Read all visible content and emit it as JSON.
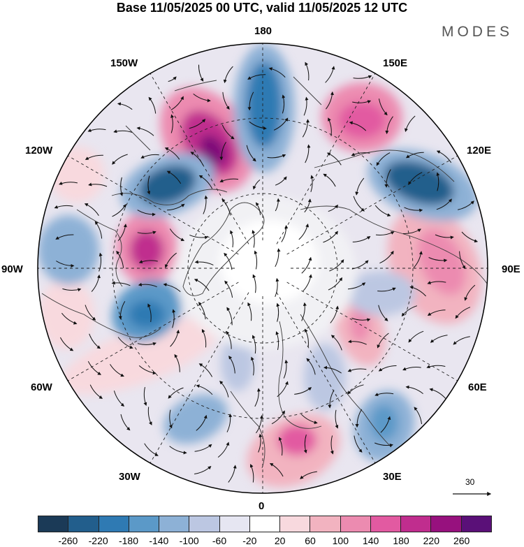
{
  "header": {
    "title": "Base 11/05/2025 00 UTC, valid 11/05/2025 12 UTC",
    "brand": "MODES"
  },
  "map": {
    "projection": "polar-stereographic-north",
    "longitude_labels": {
      "top": "180",
      "bottom": "0",
      "left": "90W",
      "right": "90E",
      "ul1": "150W",
      "ul2": "120W",
      "ur1": "150E",
      "ur2": "120E",
      "ll1": "60W",
      "ll2": "30W",
      "lr1": "60E",
      "lr2": "30E"
    },
    "vector_reference": "30"
  },
  "colorbar": {
    "colors": [
      "#1b3a57",
      "#225e8c",
      "#2f7ab3",
      "#5b99c8",
      "#8db1d6",
      "#bcc7e2",
      "#e6e6f2",
      "#ffffff",
      "#f8d9de",
      "#f2b3c0",
      "#ec8bb0",
      "#e25aa1",
      "#c02d8e",
      "#97117e",
      "#5a1078"
    ],
    "ticks": [
      "-260",
      "-220",
      "-180",
      "-140",
      "-100",
      "-60",
      "-20",
      "20",
      "60",
      "100",
      "140",
      "180",
      "220",
      "260"
    ]
  }
}
